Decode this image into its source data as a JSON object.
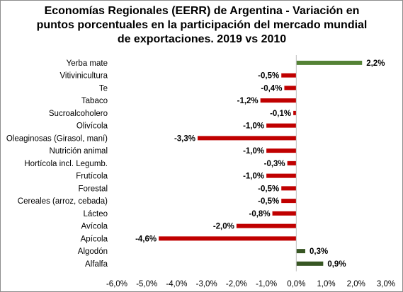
{
  "chart_data": {
    "type": "bar",
    "orientation": "horizontal",
    "title_lines": [
      "Economías Regionales (EERR) de Argentina - Variación en",
      "puntos porcentuales en la participación  del mercado mundial",
      "de exportaciones. 2019 vs 2010"
    ],
    "categories": [
      "Yerba mate",
      "Vitivinicultura",
      "Te",
      "Tabaco",
      "Sucroalcoholero",
      "Olivícola",
      "Oleaginosas (Girasol, maní)",
      "Nutrición animal",
      "Hortícola incl. Legumb.",
      "Frutícola",
      "Forestal",
      "Cereales (arroz, cebada)",
      "Lácteo",
      "Avícola",
      "Apícola",
      "Algodón",
      "Alfalfa"
    ],
    "values": [
      2.2,
      -0.5,
      -0.4,
      -1.2,
      -0.1,
      -1.0,
      -3.3,
      -1.0,
      -0.3,
      -1.0,
      -0.5,
      -0.5,
      -0.8,
      -2.0,
      -4.6,
      0.3,
      0.9
    ],
    "data_labels": [
      "2,2%",
      "-0,5%",
      "-0,4%",
      "-1,2%",
      "-0,1%",
      "-1,0%",
      "-3,3%",
      "-1,0%",
      "-0,3%",
      "-1,0%",
      "-0,5%",
      "-0,5%",
      "-0,8%",
      "-2,0%",
      "-4,6%",
      "0,3%",
      "0,9%"
    ],
    "bar_colors": [
      "#548235",
      "#c00000",
      "#c00000",
      "#c00000",
      "#c00000",
      "#c00000",
      "#c00000",
      "#c00000",
      "#c00000",
      "#c00000",
      "#c00000",
      "#c00000",
      "#c00000",
      "#c00000",
      "#c00000",
      "#375623",
      "#375623"
    ],
    "xlim": [
      -6.0,
      3.0
    ],
    "xticks": [
      -6.0,
      -5.0,
      -4.0,
      -3.0,
      -2.0,
      -1.0,
      0.0,
      1.0,
      2.0,
      3.0
    ],
    "xtick_labels": [
      "-6,0%",
      "-5,0%",
      "-4,0%",
      "-3,0%",
      "-2,0%",
      "-1,0%",
      "0,0%",
      "1,0%",
      "2,0%",
      "3,0%"
    ],
    "xlabel": "",
    "ylabel": "",
    "grid": false,
    "legend": "none"
  }
}
